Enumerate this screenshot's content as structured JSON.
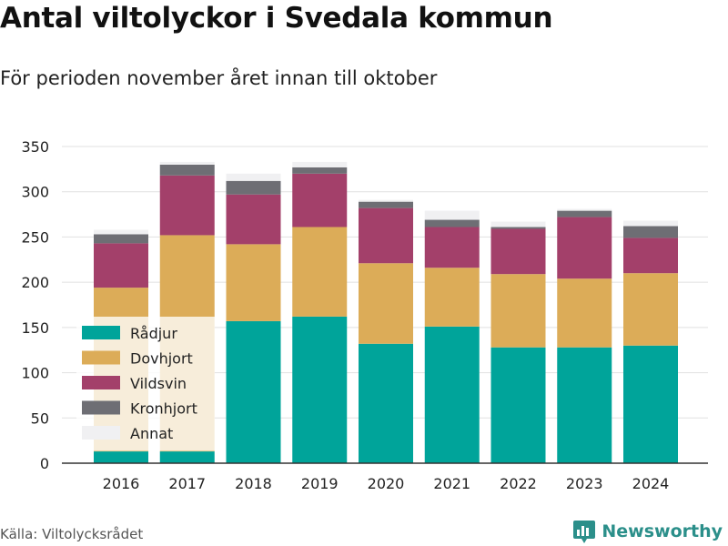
{
  "header": {
    "title": "Antal viltolyckor i Svedala kommun",
    "subtitle": "För perioden november året innan till oktober"
  },
  "footer": {
    "source": "Källa: Viltolycksrådet",
    "brand": "Newsworthy",
    "brand_icon": "bar-chart-badge-icon",
    "brand_color": "#2b8f8a"
  },
  "chart_data": {
    "type": "bar",
    "stacked": true,
    "categories": [
      "2016",
      "2017",
      "2018",
      "2019",
      "2020",
      "2021",
      "2022",
      "2023",
      "2024"
    ],
    "series": [
      {
        "name": "Rådjur",
        "color": "#00a49a",
        "values": [
          13,
          13,
          157,
          162,
          132,
          151,
          128,
          128,
          130
        ]
      },
      {
        "name": "Dovhjort",
        "color": "#dcac58",
        "values": [
          181,
          239,
          85,
          99,
          89,
          65,
          81,
          76,
          80
        ]
      },
      {
        "name": "Vildsvin",
        "color": "#a3406a",
        "values": [
          49,
          66,
          55,
          59,
          61,
          45,
          50,
          68,
          39
        ]
      },
      {
        "name": "Kronhjort",
        "color": "#6e6e74",
        "values": [
          10,
          12,
          15,
          7,
          7,
          8,
          2,
          7,
          13
        ]
      },
      {
        "name": "Annat",
        "color": "#f0f0f2",
        "values": [
          5,
          3,
          8,
          6,
          2,
          10,
          6,
          2,
          6
        ]
      }
    ],
    "y_ticks": [
      0,
      50,
      100,
      150,
      200,
      250,
      300,
      350
    ],
    "ylim": [
      0,
      350
    ],
    "grid": true,
    "legend_position": "bottom-left inside"
  }
}
